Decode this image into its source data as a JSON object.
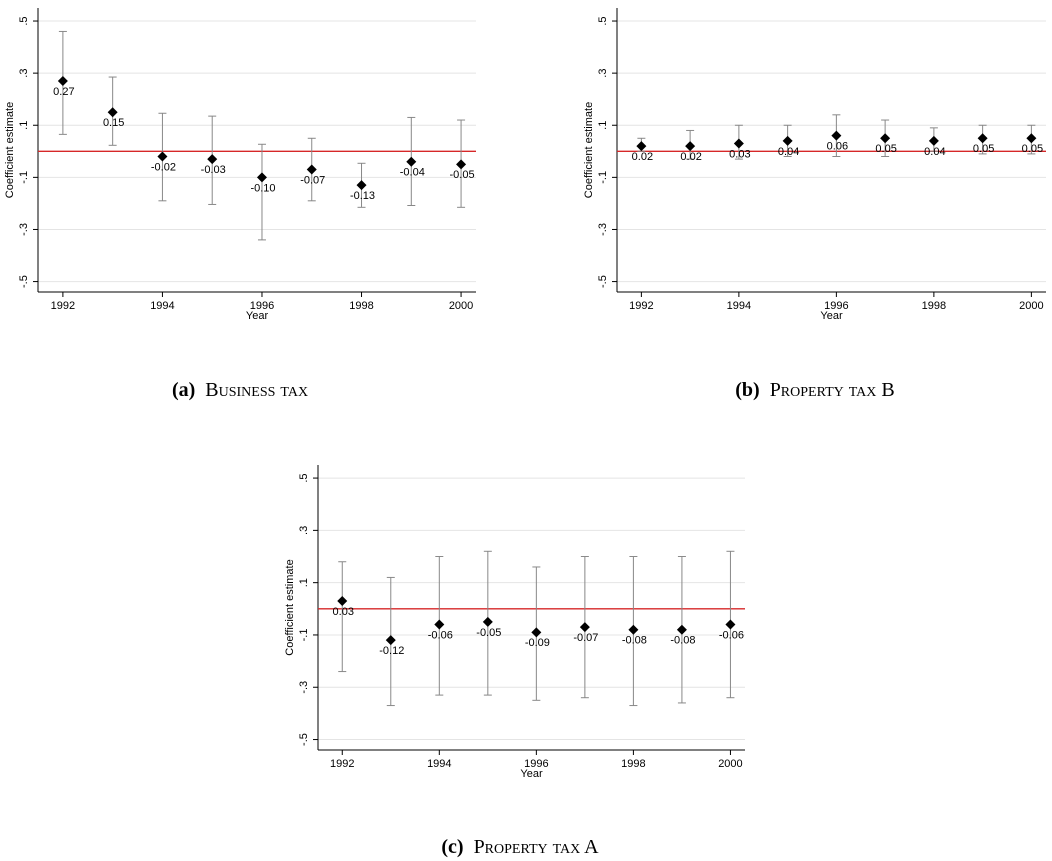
{
  "chart_data": [
    {
      "type": "errorbar",
      "caption_label": "(a)",
      "caption": "Business tax",
      "ylabel": "Coefficient estimate",
      "xlabel": "Year",
      "x": [
        1992,
        1993,
        1994,
        1995,
        1996,
        1997,
        1998,
        1999,
        2000
      ],
      "values": [
        0.27,
        0.15,
        -0.02,
        -0.03,
        -0.1,
        -0.07,
        -0.13,
        -0.04,
        -0.05
      ],
      "value_labels": [
        "0.27",
        "0.15",
        "-0.02",
        "-0.03",
        "-0.10",
        "-0.07",
        "-0.13",
        "-0.04",
        "-0.05"
      ],
      "lower": [
        0.065,
        0.023,
        -0.19,
        -0.204,
        -0.34,
        -0.19,
        -0.215,
        -0.208,
        -0.215
      ],
      "upper": [
        0.46,
        0.285,
        0.146,
        0.135,
        0.027,
        0.05,
        -0.046,
        0.13,
        0.12
      ],
      "color": "#000000",
      "error_color": "#888888",
      "refline": {
        "value": 0,
        "color": "#d62728"
      },
      "xlim": [
        1991.5,
        2000.3
      ],
      "ylim": [
        -0.54,
        0.55
      ],
      "xticks": [
        1992,
        1994,
        1996,
        1998,
        2000
      ],
      "yticks": [
        {
          "value": 0.5,
          "label": ".5"
        },
        {
          "value": 0.3,
          "label": ".3"
        },
        {
          "value": 0.1,
          "label": ".1"
        },
        {
          "value": -0.1,
          "label": "-.1"
        },
        {
          "value": -0.3,
          "label": "-.3"
        },
        {
          "value": -0.5,
          "label": "-.5"
        }
      ],
      "grid": true
    },
    {
      "type": "errorbar",
      "caption_label": "(b)",
      "caption": "Property tax B",
      "ylabel": "Coefficient estimate",
      "xlabel": "Year",
      "x": [
        1992,
        1993,
        1994,
        1995,
        1996,
        1997,
        1998,
        1999,
        2000
      ],
      "values": [
        0.02,
        0.02,
        0.03,
        0.04,
        0.06,
        0.05,
        0.04,
        0.05,
        0.05
      ],
      "value_labels": [
        "0.02",
        "0.02",
        "0.03",
        "0.04",
        "0.06",
        "0.05",
        "0.04",
        "0.05",
        "0.05"
      ],
      "lower": [
        0.0,
        -0.03,
        -0.03,
        -0.02,
        -0.02,
        -0.02,
        0.0,
        -0.01,
        -0.01
      ],
      "upper": [
        0.05,
        0.08,
        0.1,
        0.1,
        0.14,
        0.12,
        0.09,
        0.1,
        0.1
      ],
      "color": "#000000",
      "error_color": "#888888",
      "refline": {
        "value": 0,
        "color": "#d62728"
      },
      "xlim": [
        1991.5,
        2000.3
      ],
      "ylim": [
        -0.54,
        0.55
      ],
      "xticks": [
        1992,
        1994,
        1996,
        1998,
        2000
      ],
      "yticks": [
        {
          "value": 0.5,
          "label": ".5"
        },
        {
          "value": 0.3,
          "label": ".3"
        },
        {
          "value": 0.1,
          "label": ".1"
        },
        {
          "value": -0.1,
          "label": "-.1"
        },
        {
          "value": -0.3,
          "label": "-.3"
        },
        {
          "value": -0.5,
          "label": "-.5"
        }
      ],
      "grid": true
    },
    {
      "type": "errorbar",
      "caption_label": "(c)",
      "caption": "Property tax A",
      "ylabel": "Coefficient estimate",
      "xlabel": "Year",
      "x": [
        1992,
        1993,
        1994,
        1995,
        1996,
        1997,
        1998,
        1999,
        2000
      ],
      "values": [
        0.03,
        -0.12,
        -0.06,
        -0.05,
        -0.09,
        -0.07,
        -0.08,
        -0.08,
        -0.06
      ],
      "value_labels": [
        "0.03",
        "-0.12",
        "-0.06",
        "-0.05",
        "-0.09",
        "-0.07",
        "-0.08",
        "-0.08",
        "-0.06"
      ],
      "lower": [
        -0.24,
        -0.37,
        -0.33,
        -0.33,
        -0.35,
        -0.34,
        -0.37,
        -0.36,
        -0.34
      ],
      "upper": [
        0.18,
        0.12,
        0.2,
        0.22,
        0.16,
        0.2,
        0.2,
        0.2,
        0.22
      ],
      "color": "#000000",
      "error_color": "#888888",
      "refline": {
        "value": 0,
        "color": "#d62728"
      },
      "xlim": [
        1991.5,
        2000.3
      ],
      "ylim": [
        -0.54,
        0.55
      ],
      "xticks": [
        1992,
        1994,
        1996,
        1998,
        2000
      ],
      "yticks": [
        {
          "value": 0.5,
          "label": ".5"
        },
        {
          "value": 0.3,
          "label": ".3"
        },
        {
          "value": 0.1,
          "label": ".1"
        },
        {
          "value": -0.1,
          "label": "-.1"
        },
        {
          "value": -0.3,
          "label": "-.3"
        },
        {
          "value": -0.5,
          "label": "-.5"
        }
      ],
      "grid": true
    }
  ]
}
